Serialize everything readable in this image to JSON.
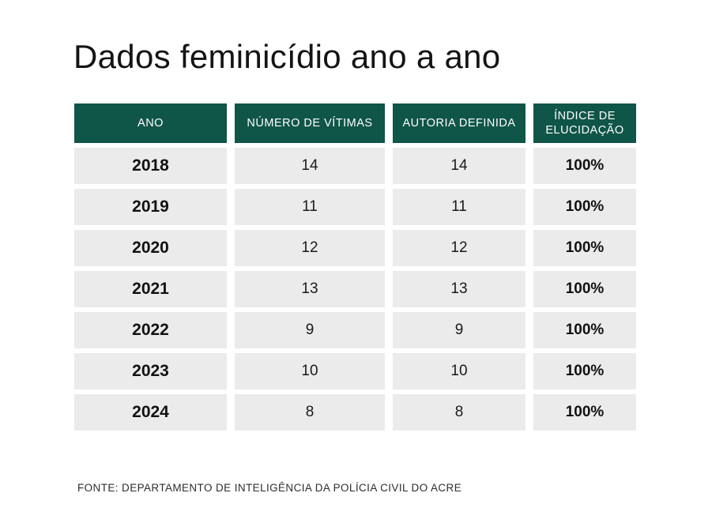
{
  "title": "Dados feminicídio ano a ano",
  "source": "FONTE: DEPARTAMENTO DE INTELIGÊNCIA DA POLÍCIA CIVIL DO ACRE",
  "colors": {
    "header_bg": "#0f5548",
    "row_bg": "#ebebeb",
    "text_dark": "#141414",
    "header_text": "#ffffff"
  },
  "chart_data": {
    "type": "table",
    "title": "Dados feminicídio ano a ano",
    "columns": [
      "ANO",
      "NÚMERO DE VÍTIMAS",
      "AUTORIA DEFINIDA",
      "ÍNDICE DE ELUCIDAÇÃO"
    ],
    "rows": [
      [
        "2018",
        "14",
        "14",
        "100%"
      ],
      [
        "2019",
        "11",
        "11",
        "100%"
      ],
      [
        "2020",
        "12",
        "12",
        "100%"
      ],
      [
        "2021",
        "13",
        "13",
        "100%"
      ],
      [
        "2022",
        "9",
        "9",
        "100%"
      ],
      [
        "2023",
        "10",
        "10",
        "100%"
      ],
      [
        "2024",
        "8",
        "8",
        "100%"
      ]
    ],
    "source": "FONTE: DEPARTAMENTO DE INTELIGÊNCIA DA POLÍCIA CIVIL DO ACRE"
  }
}
